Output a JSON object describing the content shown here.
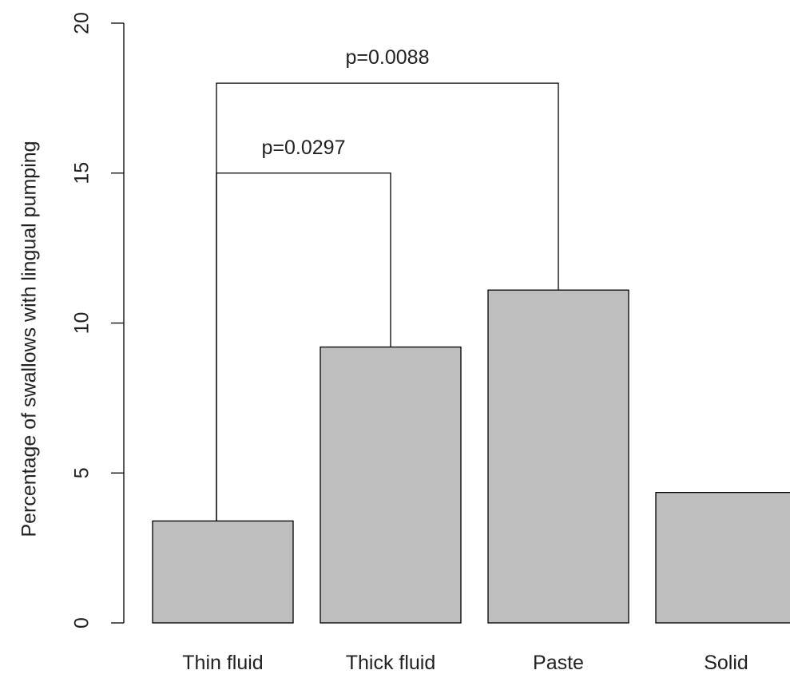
{
  "chart_data": {
    "type": "bar",
    "categories": [
      "Thin fluid",
      "Thick fluid",
      "Paste",
      "Solid"
    ],
    "values": [
      3.4,
      9.2,
      11.1,
      4.35
    ],
    "ylabel": "Percentage of swallows with lingual pumping",
    "xlabel": "",
    "ylim": [
      0,
      20
    ],
    "yticks": [
      "0",
      "5",
      "10",
      "15",
      "20"
    ],
    "bar_color": "#bebebe",
    "comparisons": [
      {
        "from": "Thin fluid",
        "to": "Thick fluid",
        "bracket_y": 15,
        "label": "p=0.0297"
      },
      {
        "from": "Thin fluid",
        "to": "Paste",
        "bracket_y": 18,
        "label": "p=0.0088"
      }
    ]
  }
}
